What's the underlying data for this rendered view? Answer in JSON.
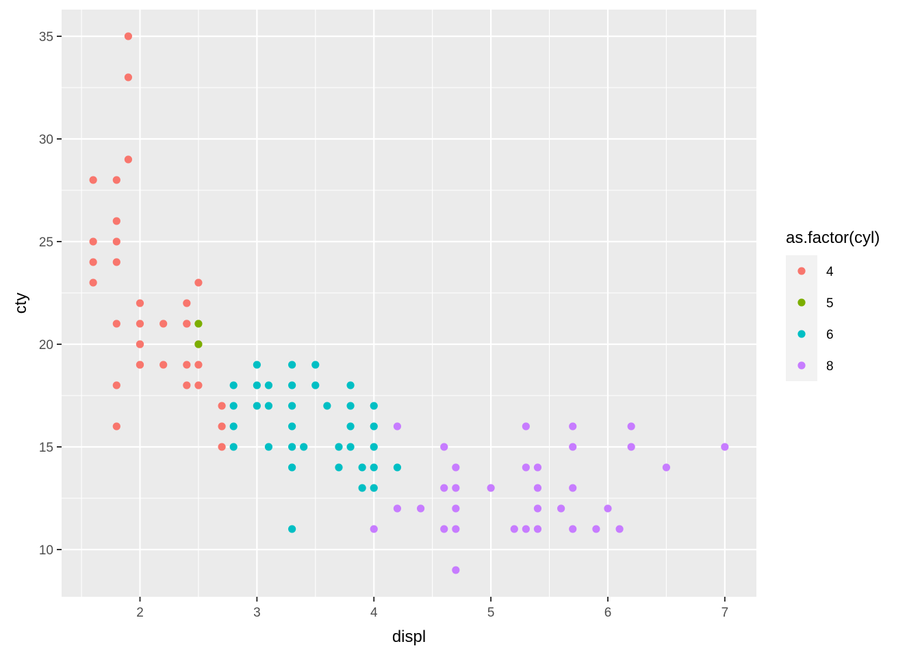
{
  "chart_data": {
    "type": "scatter",
    "xlabel": "displ",
    "ylabel": "cty",
    "xlim": [
      1.33,
      7.27
    ],
    "ylim": [
      7.7,
      36.3
    ],
    "x_ticks": [
      2,
      3,
      4,
      5,
      6,
      7
    ],
    "y_ticks": [
      10,
      15,
      20,
      25,
      30,
      35
    ],
    "grid": true,
    "legend": {
      "title": "as.factor(cyl)",
      "placement": "right",
      "entries": [
        "4",
        "5",
        "6",
        "8"
      ]
    },
    "colors": {
      "4": "#F8766D",
      "5": "#7CAE00",
      "6": "#00BFC4",
      "8": "#C77CFF"
    },
    "series": [
      {
        "name": "4",
        "points": [
          [
            1.8,
            18
          ],
          [
            1.8,
            21
          ],
          [
            2.0,
            20
          ],
          [
            2.0,
            21
          ],
          [
            2.0,
            19
          ],
          [
            2.0,
            22
          ],
          [
            2.4,
            21
          ],
          [
            2.4,
            22
          ],
          [
            1.8,
            28
          ],
          [
            1.6,
            28
          ],
          [
            1.6,
            25
          ],
          [
            1.6,
            23
          ],
          [
            1.6,
            24
          ],
          [
            1.8,
            25
          ],
          [
            1.8,
            24
          ],
          [
            1.8,
            26
          ],
          [
            1.9,
            35
          ],
          [
            1.9,
            33
          ],
          [
            1.9,
            29
          ],
          [
            2.0,
            20
          ],
          [
            2.0,
            19
          ],
          [
            2.2,
            21
          ],
          [
            2.2,
            19
          ],
          [
            2.4,
            18
          ],
          [
            2.4,
            19
          ],
          [
            2.4,
            21
          ],
          [
            2.5,
            18
          ],
          [
            2.5,
            19
          ],
          [
            2.5,
            20
          ],
          [
            2.5,
            23
          ],
          [
            2.7,
            15
          ],
          [
            2.7,
            16
          ],
          [
            2.7,
            17
          ],
          [
            1.8,
            16
          ]
        ]
      },
      {
        "name": "5",
        "points": [
          [
            2.5,
            21
          ],
          [
            2.5,
            20
          ]
        ]
      },
      {
        "name": "6",
        "points": [
          [
            2.8,
            16
          ],
          [
            2.8,
            18
          ],
          [
            3.1,
            18
          ],
          [
            2.8,
            17
          ],
          [
            2.8,
            15
          ],
          [
            3.0,
            17
          ],
          [
            3.0,
            18
          ],
          [
            3.1,
            17
          ],
          [
            3.1,
            15
          ],
          [
            3.3,
            18
          ],
          [
            3.3,
            17
          ],
          [
            3.3,
            16
          ],
          [
            3.3,
            15
          ],
          [
            3.3,
            14
          ],
          [
            3.3,
            11
          ],
          [
            3.3,
            19
          ],
          [
            3.4,
            15
          ],
          [
            3.5,
            19
          ],
          [
            3.5,
            18
          ],
          [
            3.6,
            17
          ],
          [
            3.0,
            19
          ],
          [
            3.7,
            15
          ],
          [
            3.7,
            14
          ],
          [
            3.8,
            18
          ],
          [
            3.8,
            17
          ],
          [
            3.8,
            16
          ],
          [
            3.8,
            15
          ],
          [
            3.9,
            14
          ],
          [
            3.9,
            13
          ],
          [
            4.0,
            17
          ],
          [
            4.0,
            16
          ],
          [
            4.0,
            15
          ],
          [
            4.0,
            14
          ],
          [
            4.0,
            13
          ],
          [
            4.2,
            14
          ]
        ]
      },
      {
        "name": "8",
        "points": [
          [
            4.0,
            11
          ],
          [
            4.2,
            16
          ],
          [
            4.2,
            12
          ],
          [
            4.4,
            12
          ],
          [
            4.6,
            15
          ],
          [
            4.6,
            13
          ],
          [
            4.6,
            11
          ],
          [
            4.7,
            14
          ],
          [
            4.7,
            13
          ],
          [
            4.7,
            12
          ],
          [
            4.7,
            11
          ],
          [
            4.7,
            9
          ],
          [
            5.0,
            13
          ],
          [
            5.2,
            11
          ],
          [
            5.3,
            16
          ],
          [
            5.3,
            14
          ],
          [
            5.3,
            11
          ],
          [
            5.4,
            14
          ],
          [
            5.4,
            13
          ],
          [
            5.4,
            12
          ],
          [
            5.4,
            11
          ],
          [
            5.6,
            12
          ],
          [
            5.7,
            16
          ],
          [
            5.7,
            15
          ],
          [
            5.7,
            13
          ],
          [
            5.7,
            11
          ],
          [
            5.9,
            11
          ],
          [
            6.0,
            12
          ],
          [
            6.1,
            11
          ],
          [
            6.2,
            16
          ],
          [
            6.2,
            15
          ],
          [
            6.5,
            14
          ],
          [
            7.0,
            15
          ]
        ]
      }
    ]
  }
}
